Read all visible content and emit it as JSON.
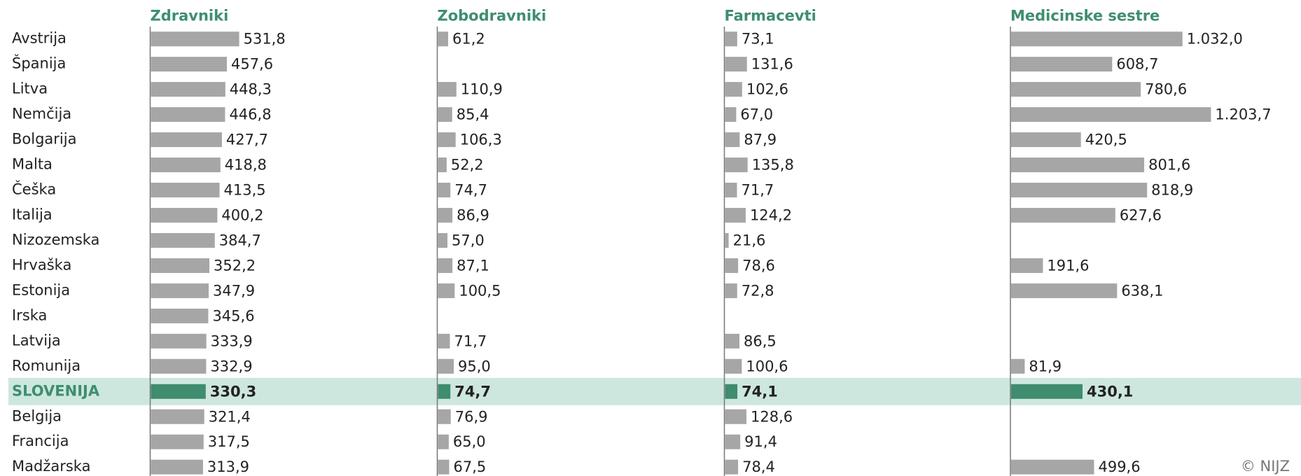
{
  "chart_data": {
    "type": "bar",
    "orientation": "horizontal",
    "categories": [
      "Avstrija",
      "Španija",
      "Litva",
      "Nemčija",
      "Bolgarija",
      "Malta",
      "Češka",
      "Italija",
      "Nizozemska",
      "Hrvaška",
      "Estonija",
      "Irska",
      "Latvija",
      "Romunija",
      "SLOVENIJA",
      "Belgija",
      "Francija",
      "Madžarska"
    ],
    "xlim": [
      0,
      1729
    ],
    "series": [
      {
        "name": "Zdravniki",
        "color": "#a6a6a6",
        "values": [
          531.8,
          457.6,
          448.3,
          446.8,
          427.7,
          418.8,
          413.5,
          400.2,
          384.7,
          352.2,
          347.9,
          345.6,
          333.9,
          332.9,
          330.3,
          321.4,
          317.5,
          313.9
        ],
        "value_labels": [
          "531,8",
          "457,6",
          "448,3",
          "446,8",
          "427,7",
          "418,8",
          "413,5",
          "400,2",
          "384,7",
          "352,2",
          "347,9",
          "345,6",
          "333,9",
          "332,9",
          "330,3",
          "321,4",
          "317,5",
          "313,9"
        ]
      },
      {
        "name": "Zobodravniki",
        "color": "#a6a6a6",
        "values": [
          61.2,
          null,
          110.9,
          85.4,
          106.3,
          52.2,
          74.7,
          86.9,
          57.0,
          87.1,
          100.5,
          null,
          71.7,
          95.0,
          74.7,
          76.9,
          65.0,
          67.5
        ],
        "value_labels": [
          "61,2",
          null,
          "110,9",
          "85,4",
          "106,3",
          "52,2",
          "74,7",
          "86,9",
          "57,0",
          "87,1",
          "100,5",
          null,
          "71,7",
          "95,0",
          "74,7",
          "76,9",
          "65,0",
          "67,5"
        ]
      },
      {
        "name": "Farmacevti",
        "color": "#a6a6a6",
        "values": [
          73.1,
          131.6,
          102.6,
          67.0,
          87.9,
          135.8,
          71.7,
          124.2,
          21.6,
          78.6,
          72.8,
          null,
          86.5,
          100.6,
          74.1,
          128.6,
          91.4,
          78.4
        ],
        "value_labels": [
          "73,1",
          "131,6",
          "102,6",
          "67,0",
          "87,9",
          "135,8",
          "71,7",
          "124,2",
          "21,6",
          "78,6",
          "72,8",
          null,
          "86,5",
          "100,6",
          "74,1",
          "128,6",
          "91,4",
          "78,4"
        ]
      },
      {
        "name": "Medicinske sestre",
        "color": "#a6a6a6",
        "values": [
          1032.0,
          608.7,
          780.6,
          1203.7,
          420.5,
          801.6,
          818.9,
          627.6,
          null,
          191.6,
          638.1,
          null,
          null,
          81.9,
          430.1,
          null,
          null,
          499.6
        ],
        "value_labels": [
          "1.032,0",
          "608,7",
          "780,6",
          "1.203,7",
          "420,5",
          "801,6",
          "818,9",
          "627,6",
          null,
          "191,6",
          "638,1",
          null,
          null,
          "81,9",
          "430,1",
          null,
          null,
          "499,6"
        ]
      }
    ],
    "highlight": {
      "category_index": 14,
      "bar_color": "#3f8c6f",
      "band_color": "#cde7df",
      "label_color": "#3e8e6e"
    },
    "source": "© NIJZ"
  }
}
